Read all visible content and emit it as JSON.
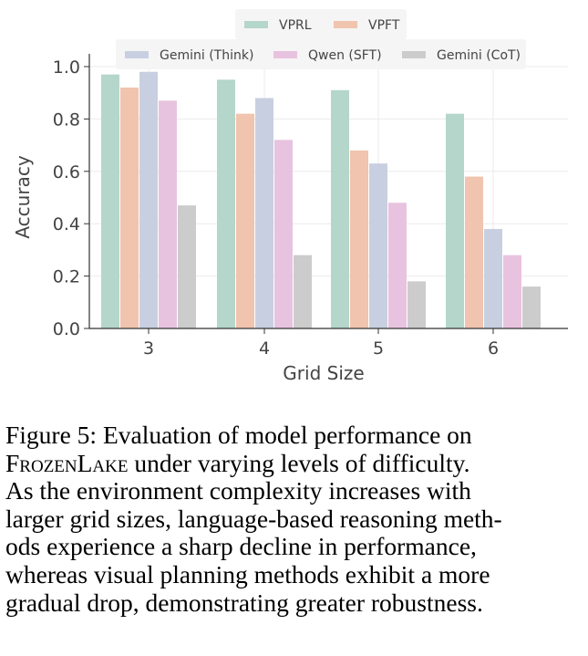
{
  "chart_data": {
    "type": "bar",
    "title": "",
    "xlabel": "Grid Size",
    "ylabel": "Accuracy",
    "ylim": [
      0,
      1.0
    ],
    "yticks": [
      "0.0",
      "0.2",
      "0.4",
      "0.6",
      "0.8",
      "1.0"
    ],
    "categories": [
      "3",
      "4",
      "5",
      "6"
    ],
    "grid": true,
    "legend_placement": "top-center",
    "series": [
      {
        "name": "VPRL",
        "color": "#b5d6ca",
        "values": [
          0.97,
          0.95,
          0.91,
          0.82
        ]
      },
      {
        "name": "VPFT",
        "color": "#f0c4ae",
        "values": [
          0.92,
          0.82,
          0.68,
          0.58
        ]
      },
      {
        "name": "Gemini (Think)",
        "color": "#c8cfe0",
        "values": [
          0.98,
          0.88,
          0.63,
          0.38
        ]
      },
      {
        "name": "Qwen (SFT)",
        "color": "#e8c3df",
        "values": [
          0.87,
          0.72,
          0.48,
          0.28
        ]
      },
      {
        "name": "Gemini (CoT)",
        "color": "#cccccc",
        "values": [
          0.47,
          0.28,
          0.18,
          0.16
        ]
      }
    ]
  },
  "caption": {
    "lines": [
      "Figure 5: Evaluation of model performance on",
      "FrozenLake under varying levels of difficulty.",
      "As the environment complexity increases with",
      "larger grid sizes, language-based reasoning meth-",
      "ods experience a sharp decline in performance,",
      "whereas visual planning methods exhibit a more",
      "gradual drop, demonstrating greater robustness."
    ],
    "smallcaps_word": "FrozenLake",
    "line2_rest": " under varying levels of difficulty."
  }
}
